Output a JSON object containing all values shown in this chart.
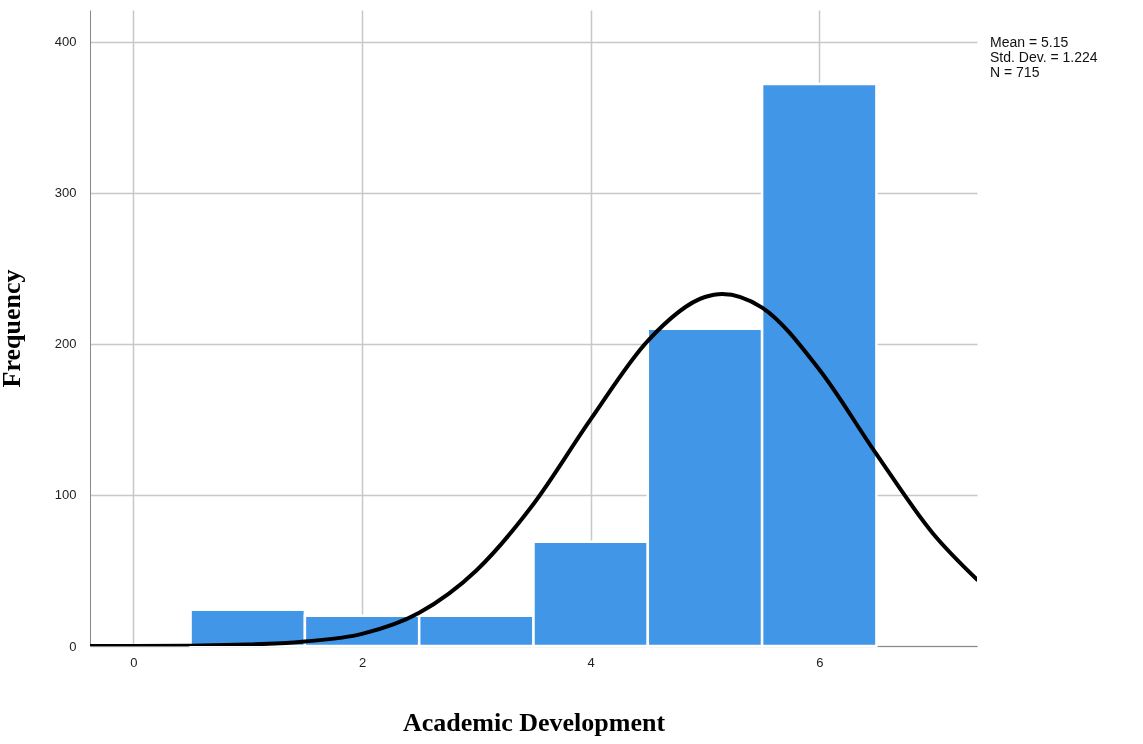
{
  "chart_data": {
    "type": "histogram",
    "xlabel": "Academic Development",
    "ylabel": "Frequency",
    "bins": [
      0.5,
      1.5,
      2.5,
      3.5,
      4.5,
      5.5,
      6.5
    ],
    "values": [
      24,
      20,
      20,
      69,
      210,
      372
    ],
    "color": "#4196e8",
    "series": [
      {
        "type": "line",
        "color": "#000000",
        "x": [
          -0.38,
          0,
          1,
          1.5,
          2,
          2.5,
          3,
          3.5,
          4,
          4.5,
          5,
          5.15,
          5.5,
          6,
          6.5,
          7,
          7.38
        ],
        "values": [
          0,
          0,
          1,
          3,
          8,
          22,
          50,
          94,
          150,
          202,
          231,
          233,
          224,
          183,
          127,
          74,
          44
        ]
      }
    ],
    "xlim": [
      -0.38,
      7.38
    ],
    "xticks": [
      0,
      2,
      4,
      6
    ],
    "ylim": [
      0,
      421
    ],
    "yticks": [
      0,
      100,
      200,
      300,
      400
    ],
    "grid": true,
    "annotations": [
      "Mean = 5.15",
      "Std. Dev. = 1.224",
      "N = 715"
    ]
  }
}
